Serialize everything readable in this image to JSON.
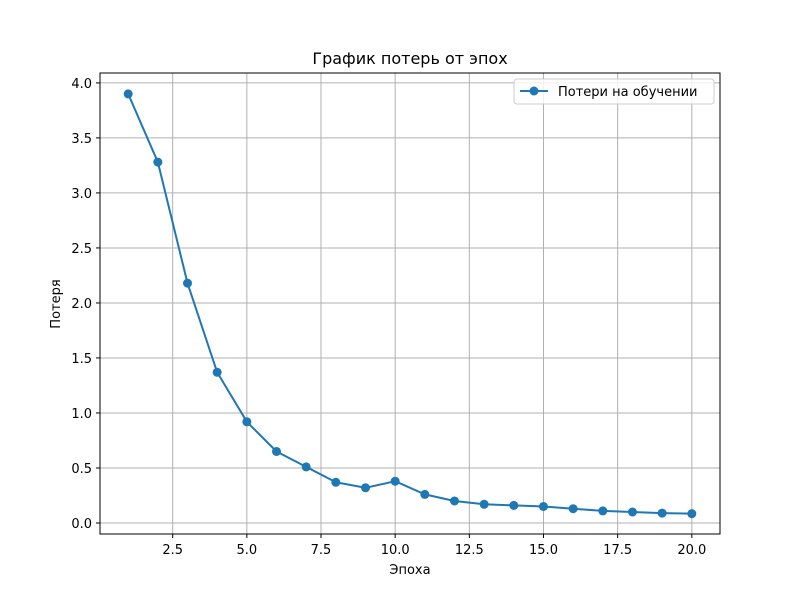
{
  "chart_data": {
    "type": "line",
    "title": "График потерь от эпох",
    "xlabel": "Эпоха",
    "ylabel": "Потеря",
    "x": [
      1,
      2,
      3,
      4,
      5,
      6,
      7,
      8,
      9,
      10,
      11,
      12,
      13,
      14,
      15,
      16,
      17,
      18,
      19,
      20
    ],
    "series": [
      {
        "name": "Потери на обучении",
        "values": [
          3.9,
          3.28,
          2.18,
          1.37,
          0.92,
          0.65,
          0.51,
          0.37,
          0.32,
          0.38,
          0.26,
          0.2,
          0.17,
          0.16,
          0.15,
          0.13,
          0.11,
          0.1,
          0.09,
          0.085
        ],
        "color": "#1f77b4",
        "marker": "circle"
      }
    ],
    "xlim": [
      0.05,
      20.95
    ],
    "ylim": [
      -0.1,
      4.09
    ],
    "xticks": [
      "2.5",
      "5.0",
      "7.5",
      "10.0",
      "12.5",
      "15.0",
      "17.5",
      "20.0"
    ],
    "yticks": [
      "0.0",
      "0.5",
      "1.0",
      "1.5",
      "2.0",
      "2.5",
      "3.0",
      "3.5",
      "4.0"
    ],
    "grid": true,
    "legend_position": "top-right"
  }
}
